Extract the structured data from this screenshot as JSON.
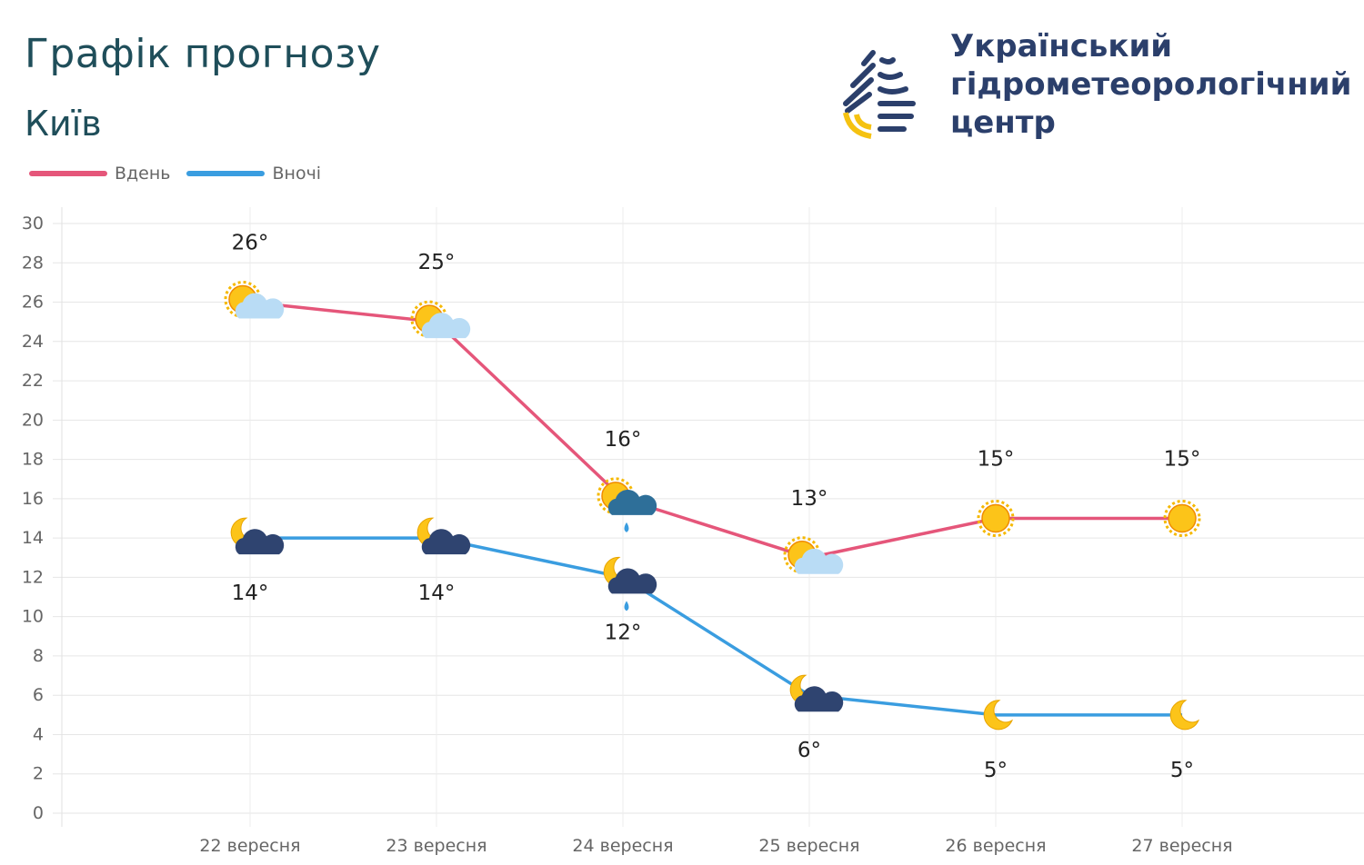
{
  "header": {
    "title": "Графік прогнозу",
    "city": "Київ"
  },
  "org": {
    "line1": "Український",
    "line2": "гідрометеорологічний",
    "line3": "центр"
  },
  "colors": {
    "day": "#e5567a",
    "night": "#3a9de0",
    "sun": "#f5b800",
    "title": "#1f4e5a",
    "org": "#2b3f6b"
  },
  "chart_data": {
    "type": "line",
    "categories": [
      "22 вересня",
      "23 вересня",
      "24 вересня",
      "25 вересня",
      "26 вересня",
      "27 вересня"
    ],
    "series": [
      {
        "name": "Вдень",
        "values": [
          26,
          25,
          16,
          13,
          15,
          15
        ],
        "labels": [
          "26°",
          "25°",
          "16°",
          "13°",
          "15°",
          "15°"
        ],
        "icons": [
          "sun-cloud",
          "sun-cloud",
          "sun-cloud-rain",
          "sun-cloud",
          "sun",
          "sun"
        ]
      },
      {
        "name": "Вночі",
        "values": [
          14,
          14,
          12,
          6,
          5,
          5
        ],
        "labels": [
          "14°",
          "14°",
          "12°",
          "6°",
          "5°",
          "5°"
        ],
        "icons": [
          "moon-cloud",
          "moon-cloud",
          "moon-cloud-rain",
          "moon-cloud",
          "moon",
          "moon"
        ]
      }
    ],
    "yticks": [
      "0",
      "2",
      "4",
      "6",
      "8",
      "10",
      "12",
      "14",
      "16",
      "18",
      "20",
      "22",
      "24",
      "26",
      "28",
      "30"
    ],
    "ylim": [
      0,
      30
    ],
    "grid": true,
    "legend": "top-left"
  }
}
